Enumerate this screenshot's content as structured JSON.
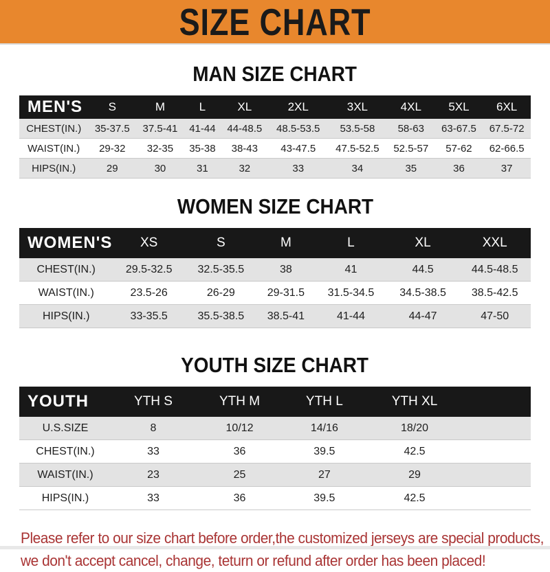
{
  "banner": {
    "title": "SIZE CHART"
  },
  "colors": {
    "banner_bg": "#E8872D",
    "banner_text": "#1A1A1A",
    "header_bar": "#181818",
    "header_text": "#FFFFFF",
    "row_alt": "#E3E3E3",
    "body_text": "#1E1E1E",
    "footer_text": "#A93434"
  },
  "sections": [
    {
      "heading": "MAN SIZE CHART",
      "corner": "MEN'S",
      "columns": [
        "S",
        "M",
        "L",
        "XL",
        "2XL",
        "3XL",
        "4XL",
        "5XL",
        "6XL"
      ],
      "rows": [
        {
          "label": "CHEST(IN.)",
          "values": [
            "35-37.5",
            "37.5-41",
            "41-44",
            "44-48.5",
            "48.5-53.5",
            "53.5-58",
            "58-63",
            "63-67.5",
            "67.5-72"
          ]
        },
        {
          "label": "WAIST(IN.)",
          "values": [
            "29-32",
            "32-35",
            "35-38",
            "38-43",
            "43-47.5",
            "47.5-52.5",
            "52.5-57",
            "57-62",
            "62-66.5"
          ]
        },
        {
          "label": "HIPS(IN.)",
          "values": [
            "29",
            "30",
            "31",
            "32",
            "33",
            "34",
            "35",
            "36",
            "37"
          ]
        }
      ]
    },
    {
      "heading": "WOMEN SIZE CHART",
      "corner": "WOMEN'S",
      "columns": [
        "XS",
        "S",
        "M",
        "L",
        "XL",
        "XXL"
      ],
      "rows": [
        {
          "label": "CHEST(IN.)",
          "values": [
            "29.5-32.5",
            "32.5-35.5",
            "38",
            "41",
            "44.5",
            "44.5-48.5"
          ]
        },
        {
          "label": "WAIST(IN.)",
          "values": [
            "23.5-26",
            "26-29",
            "29-31.5",
            "31.5-34.5",
            "34.5-38.5",
            "38.5-42.5"
          ]
        },
        {
          "label": "HIPS(IN.)",
          "values": [
            "33-35.5",
            "35.5-38.5",
            "38.5-41",
            "41-44",
            "44-47",
            "47-50"
          ]
        }
      ]
    },
    {
      "heading": "YOUTH SIZE CHART",
      "corner": "YOUTH",
      "columns": [
        "YTH S",
        "YTH M",
        "YTH L",
        "YTH XL"
      ],
      "rows": [
        {
          "label": "U.S.SIZE",
          "values": [
            "8",
            "10/12",
            "14/16",
            "18/20"
          ]
        },
        {
          "label": "CHEST(IN.)",
          "values": [
            "33",
            "36",
            "39.5",
            "42.5"
          ]
        },
        {
          "label": "WAIST(IN.)",
          "values": [
            "23",
            "25",
            "27",
            "29"
          ]
        },
        {
          "label": "HIPS(IN.)",
          "values": [
            "33",
            "36",
            "39.5",
            "42.5"
          ]
        }
      ]
    }
  ],
  "footer": {
    "lines": [
      "Please refer to our size chart before order,the customized jerseys are special products,",
      "we don't accept cancel, change, teturn or refund after order has been placed!"
    ]
  }
}
